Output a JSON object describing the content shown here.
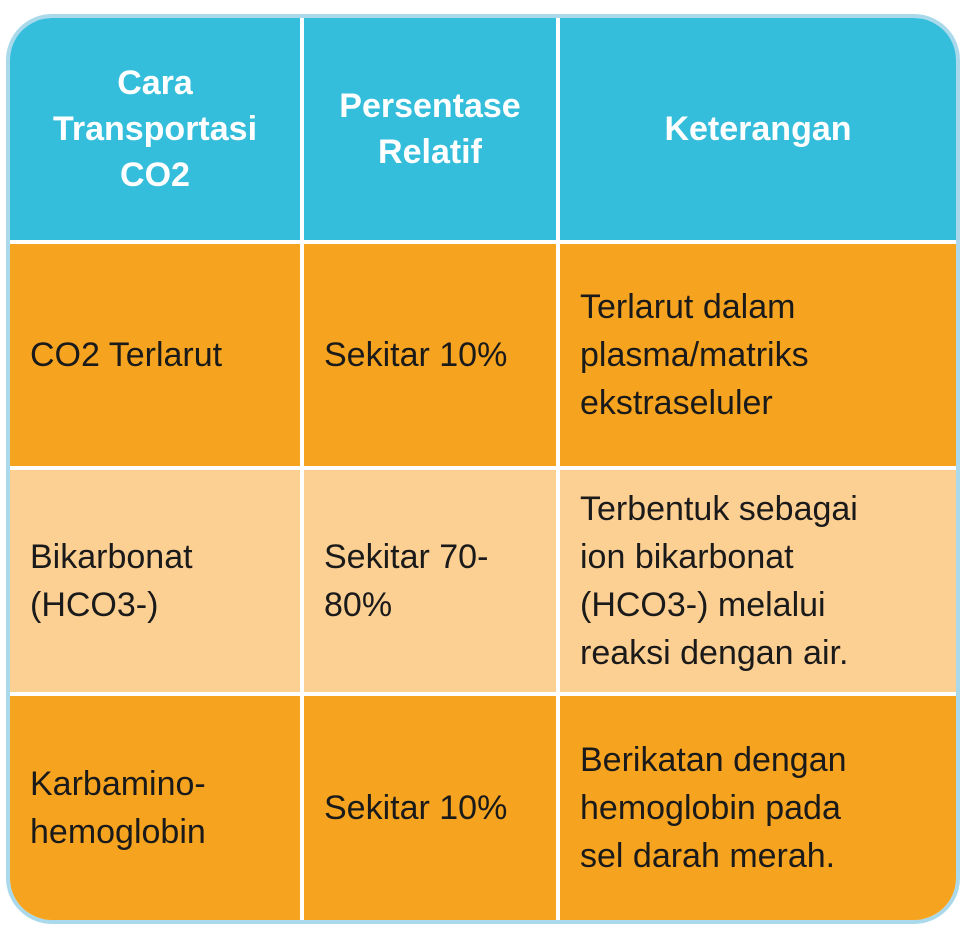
{
  "colors": {
    "header": "#35bedc",
    "row_dark": "#f6a41f",
    "row_light": "#fccf92",
    "border": "#a9d9ea"
  },
  "headers": [
    {
      "lines": [
        "Cara",
        "Transportasi",
        "CO2"
      ]
    },
    {
      "lines": [
        "Persentase",
        "Relatif"
      ]
    },
    {
      "lines": [
        "Keterangan"
      ]
    }
  ],
  "rows": [
    {
      "cells": [
        {
          "lines": [
            "CO2 Terlarut"
          ]
        },
        {
          "lines": [
            "Sekitar 10%"
          ]
        },
        {
          "lines": [
            "Terlarut dalam",
            "plasma/matriks",
            "ekstraseluler"
          ]
        }
      ]
    },
    {
      "cells": [
        {
          "lines": [
            "Bikarbonat",
            "(HCO3-)"
          ]
        },
        {
          "lines": [
            "Sekitar 70-",
            "80%"
          ]
        },
        {
          "lines": [
            "Terbentuk sebagai",
            "ion bikarbonat",
            "(HCO3-) melalui",
            "reaksi dengan air."
          ]
        }
      ]
    },
    {
      "cells": [
        {
          "lines": [
            "Karbamino-",
            "hemoglobin"
          ]
        },
        {
          "lines": [
            "Sekitar 10%"
          ]
        },
        {
          "lines": [
            "Berikatan dengan",
            "hemoglobin pada",
            "sel darah merah."
          ]
        }
      ]
    }
  ]
}
